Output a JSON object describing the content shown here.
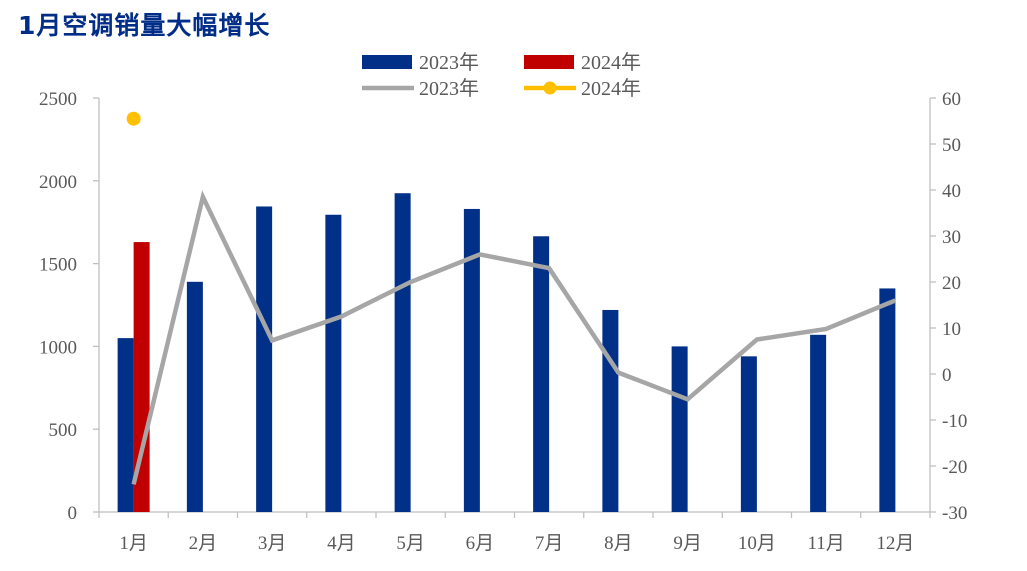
{
  "title": "1月空调销量大幅增长",
  "chart_data": {
    "type": "bar",
    "title": "1月空调销量大幅增长",
    "categories": [
      "1月",
      "2月",
      "3月",
      "4月",
      "5月",
      "6月",
      "7月",
      "8月",
      "9月",
      "10月",
      "11月",
      "12月"
    ],
    "y_left": {
      "ylim": [
        0,
        2500
      ],
      "ticks": [
        0,
        500,
        1000,
        1500,
        2000,
        2500
      ]
    },
    "y_right": {
      "ylim": [
        -30,
        60
      ],
      "ticks": [
        -30,
        -20,
        -10,
        0,
        10,
        20,
        30,
        40,
        50,
        60
      ]
    },
    "series": [
      {
        "name": "2023年",
        "kind": "bar",
        "axis": "left",
        "color": "#003087",
        "values": [
          1050,
          1390,
          1845,
          1795,
          1925,
          1830,
          1665,
          1220,
          1000,
          940,
          1070,
          1350
        ]
      },
      {
        "name": "2024年",
        "kind": "bar",
        "axis": "left",
        "color": "#c00000",
        "values": [
          1630,
          null,
          null,
          null,
          null,
          null,
          null,
          null,
          null,
          null,
          null,
          null
        ]
      },
      {
        "name": "2023年",
        "kind": "line",
        "axis": "right",
        "color": "#a6a6a6",
        "values": [
          -24,
          38.5,
          7.3,
          12.5,
          20,
          26,
          23,
          0.3,
          -5.5,
          7.5,
          9.8,
          16
        ]
      },
      {
        "name": "2024年",
        "kind": "line",
        "axis": "right",
        "color": "#ffc000",
        "values": [
          55.5,
          null,
          null,
          null,
          null,
          null,
          null,
          null,
          null,
          null,
          null,
          null
        ]
      }
    ],
    "legend_position": "top-center",
    "grid": false
  }
}
